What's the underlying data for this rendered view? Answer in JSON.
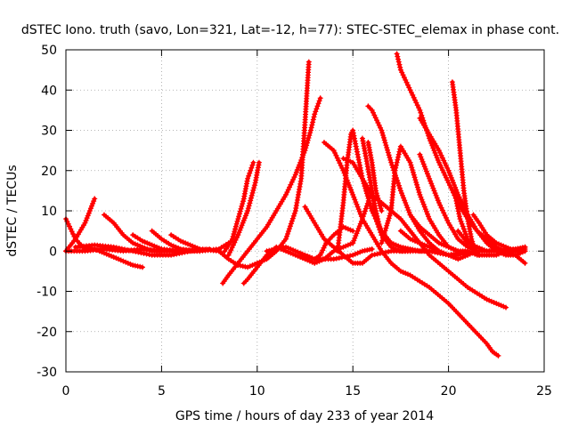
{
  "chart_data": {
    "type": "scatter",
    "title": "dSTEC Iono. truth (savo, Lon=321, Lat=-12, h=77): STEC-STEC_elemax in phase cont.",
    "xlabel": "GPS time / hours of day 233 of year 2014",
    "ylabel": "dSTEC  / TECUs",
    "xlim": [
      0,
      25
    ],
    "ylim": [
      -30,
      50
    ],
    "xticks": [
      0,
      5,
      10,
      15,
      20,
      25
    ],
    "yticks": [
      -30,
      -20,
      -10,
      0,
      10,
      20,
      30,
      40,
      50
    ],
    "grid": true,
    "marker": "+",
    "color": "#ff0000",
    "series": [
      {
        "x": [
          0,
          0.5,
          1,
          1.5,
          2,
          2.5,
          3,
          3.5,
          4
        ],
        "y": [
          8,
          3,
          0.5,
          0.5,
          -0.5,
          -1.5,
          -2.5,
          -3.5,
          -4
        ]
      },
      {
        "x": [
          0,
          0.5,
          1,
          1.5
        ],
        "y": [
          0,
          3,
          7,
          13
        ]
      },
      {
        "x": [
          0,
          1,
          2,
          3,
          4,
          5,
          6,
          7,
          8,
          8.5
        ],
        "y": [
          0,
          0,
          0.5,
          0,
          0.5,
          0,
          0,
          0,
          0.5,
          2
        ]
      },
      {
        "x": [
          0.5,
          1.5,
          2.5,
          3.5,
          4.5,
          5.5,
          6.5,
          7.5
        ],
        "y": [
          1,
          1.5,
          1,
          0,
          -1,
          -1,
          0,
          0.5
        ]
      },
      {
        "x": [
          2,
          2.5,
          3,
          3.5,
          4,
          4.5,
          5
        ],
        "y": [
          9,
          7,
          4,
          2,
          1,
          0,
          0
        ]
      },
      {
        "x": [
          3.5,
          4,
          4.5,
          5,
          6
        ],
        "y": [
          4,
          2.5,
          1.5,
          0.5,
          0
        ]
      },
      {
        "x": [
          4.5,
          5,
          5.5,
          6,
          7
        ],
        "y": [
          5,
          3,
          1.5,
          0.5,
          0
        ]
      },
      {
        "x": [
          5.5,
          6,
          6.5,
          7,
          8
        ],
        "y": [
          4,
          2.5,
          1.5,
          0.5,
          0
        ]
      },
      {
        "x": [
          8,
          8.5,
          9,
          9.5,
          10,
          10.5,
          11,
          11.5,
          12,
          12.3,
          12.5,
          12.7
        ],
        "y": [
          0,
          -2,
          -3.5,
          -4,
          -3,
          -2,
          0,
          3,
          10,
          18,
          32,
          47
        ]
      },
      {
        "x": [
          8.3,
          8.7,
          9,
          9.3,
          9.5,
          9.8
        ],
        "y": [
          0,
          3,
          8,
          13,
          18,
          22
        ]
      },
      {
        "x": [
          8.5,
          9,
          9.5,
          9.9,
          10.1
        ],
        "y": [
          -1,
          4,
          10,
          17,
          22
        ]
      },
      {
        "x": [
          8.2,
          8.5,
          9,
          9.5,
          10,
          10.5,
          11,
          11.5,
          12,
          12.5,
          12.8,
          13,
          13.3
        ],
        "y": [
          -8,
          -6,
          -3,
          0,
          3,
          6,
          10,
          14,
          19,
          25,
          30,
          34,
          38
        ]
      },
      {
        "x": [
          9.3,
          9.5,
          10,
          10.5,
          11,
          11.5,
          12,
          12.5,
          13,
          13.5,
          14,
          15
        ],
        "y": [
          -8,
          -7,
          -4,
          -1,
          1,
          0,
          -1,
          -2,
          -3,
          -2,
          0,
          2
        ]
      },
      {
        "x": [
          10.5,
          11,
          11.5,
          12,
          12.5,
          13,
          14,
          15,
          15.5,
          16
        ],
        "y": [
          0,
          0.5,
          1,
          0,
          -1,
          -2,
          -2,
          -1,
          0,
          0.5
        ]
      },
      {
        "x": [
          12.3,
          12.7,
          13,
          13.3,
          13.6,
          14,
          14.5,
          15
        ],
        "y": [
          -1,
          -1.5,
          -2,
          -1,
          2,
          4,
          6,
          5
        ]
      },
      {
        "x": [
          12.5,
          13,
          13.5,
          14,
          14.5,
          15,
          15.5,
          16,
          17,
          18
        ],
        "y": [
          11,
          7,
          3,
          1,
          -1,
          -3,
          -3,
          -1,
          0,
          0
        ]
      },
      {
        "x": [
          13.5,
          14,
          14.5,
          15,
          15.5,
          16,
          16.5,
          17,
          17.5,
          18,
          19,
          20,
          21,
          22,
          22.3,
          22.6
        ],
        "y": [
          27,
          25,
          20,
          14,
          8,
          4,
          0,
          -3,
          -5,
          -6,
          -9,
          -13,
          -18,
          -23,
          -25,
          -26
        ]
      },
      {
        "x": [
          14.5,
          15,
          15.5,
          16,
          16.5,
          17,
          17.5,
          18,
          19,
          20,
          21,
          22,
          23
        ],
        "y": [
          23,
          22,
          18,
          14,
          12,
          10,
          8,
          5,
          -1,
          -5,
          -9,
          -12,
          -14
        ]
      },
      {
        "x": [
          14.2,
          14.5,
          14.7,
          14.9,
          15,
          15.5,
          16,
          16.5,
          17,
          17.5,
          18,
          19,
          20,
          21
        ],
        "y": [
          0,
          12,
          22,
          29,
          30,
          18,
          10,
          5,
          2,
          1,
          0,
          0,
          -1,
          0
        ]
      },
      {
        "x": [
          15.5,
          15.7,
          16,
          16.2,
          16.5,
          17,
          17.5,
          18,
          18.5,
          19
        ],
        "y": [
          28,
          23,
          15,
          8,
          4,
          2,
          1,
          0.5,
          0,
          0
        ]
      },
      {
        "x": [
          15.8,
          16,
          16.2,
          16.5
        ],
        "y": [
          27,
          22,
          15,
          10
        ]
      },
      {
        "x": [
          15,
          15.5,
          16,
          16.2,
          16.5,
          17,
          17.5,
          18
        ],
        "y": [
          2,
          8,
          15,
          10,
          4,
          1,
          0,
          0
        ]
      },
      {
        "x": [
          15.8,
          16,
          16.5,
          17,
          17.5,
          18,
          18.5,
          19,
          19.5,
          20,
          20.5,
          21
        ],
        "y": [
          36,
          35,
          30,
          22,
          15,
          9,
          5,
          2,
          0,
          -1,
          -2,
          -1
        ]
      },
      {
        "x": [
          16.5,
          17,
          17.2,
          17.5,
          18,
          18.5,
          19,
          19.5,
          20,
          20.5,
          21,
          21.5
        ],
        "y": [
          2,
          10,
          20,
          26,
          22,
          14,
          8,
          4,
          1,
          0,
          -1,
          0
        ]
      },
      {
        "x": [
          17.3,
          17.5,
          18,
          18.5,
          19,
          19.5,
          20,
          20.5,
          21,
          21.5,
          22,
          22.5,
          23,
          23.5,
          24
        ],
        "y": [
          49,
          45,
          40,
          35,
          28,
          22,
          17,
          12,
          8,
          5,
          3,
          1,
          0,
          -1,
          -3
        ]
      },
      {
        "x": [
          18.5,
          19,
          19.5,
          20,
          20.5,
          21,
          21.5,
          22,
          22.5,
          23,
          23.5,
          24
        ],
        "y": [
          33,
          29,
          25,
          20,
          14,
          9,
          5,
          2,
          0,
          -1,
          -1,
          0
        ]
      },
      {
        "x": [
          18.5,
          19,
          19.5,
          20,
          20.5,
          21,
          21.5,
          22,
          22.5,
          23,
          23.5,
          24
        ],
        "y": [
          24,
          18,
          12,
          7,
          3,
          1,
          0,
          0,
          0,
          0.5,
          0.5,
          0.5
        ]
      },
      {
        "x": [
          17.5,
          18,
          18.5,
          19,
          19.5,
          20,
          20.5,
          21
        ],
        "y": [
          5,
          3,
          2,
          1,
          0,
          -1,
          -1,
          0
        ]
      },
      {
        "x": [
          18,
          18.5,
          19,
          19.5,
          20,
          20.5,
          21,
          21.5,
          22,
          22.5,
          23,
          23.5,
          24
        ],
        "y": [
          9,
          6,
          4,
          2,
          1,
          0,
          0,
          -1,
          -1,
          -1,
          0,
          0,
          1
        ]
      },
      {
        "x": [
          20.2,
          20.4,
          20.6,
          20.8,
          21,
          21.2,
          21.4
        ],
        "y": [
          42,
          35,
          25,
          15,
          8,
          3,
          0
        ]
      },
      {
        "x": [
          20.3,
          20.6,
          21,
          21.3,
          21.6
        ],
        "y": [
          15,
          8,
          3,
          0,
          -1
        ]
      },
      {
        "x": [
          20.5,
          21,
          21.5,
          22,
          22.5,
          23,
          23.5,
          24
        ],
        "y": [
          5,
          2,
          1,
          0,
          0,
          0,
          0.5,
          1
        ]
      },
      {
        "x": [
          21.3,
          21.6,
          22,
          22.5,
          23,
          23.5,
          24
        ],
        "y": [
          9,
          7,
          4,
          2,
          1,
          0,
          0
        ]
      }
    ]
  }
}
